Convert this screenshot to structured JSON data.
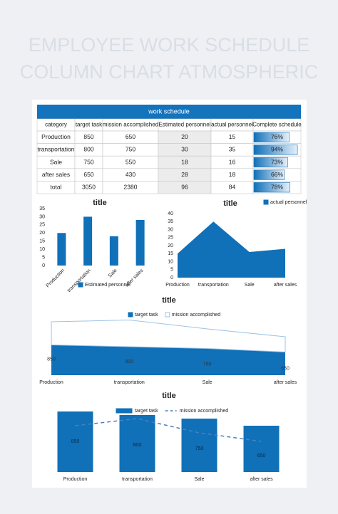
{
  "header": {
    "title_lines": [
      "EMPLOYEE WORK SCHEDULE",
      "COLUMN CHART ATMOSPHERIC"
    ]
  },
  "table": {
    "title": "work schedule",
    "columns": [
      "category",
      "target task",
      "mission accomplished",
      "Estimated personnel",
      "actual personnel",
      "Complete schedule"
    ],
    "rows": [
      [
        "Production",
        850,
        650,
        20,
        15
      ],
      [
        "transportation",
        800,
        750,
        30,
        35
      ],
      [
        "Sale",
        750,
        550,
        18,
        16
      ],
      [
        "after sales",
        650,
        430,
        28,
        18
      ],
      [
        "total",
        3050,
        2380,
        96,
        84
      ]
    ],
    "schedule": {
      "values": [
        76,
        94,
        73,
        66,
        78
      ],
      "value_labels": [
        "76%",
        "94%",
        "73%",
        "66%",
        "78%"
      ],
      "xlim": [
        0,
        100
      ],
      "color": "#1070b8"
    }
  },
  "chart_data": [
    {
      "type": "bar",
      "title": "title",
      "categories": [
        "Production",
        "transportation",
        "Sale",
        "after sales"
      ],
      "series": [
        {
          "name": "Estimated personnel",
          "color": "#1070b8",
          "values": [
            20,
            30,
            18,
            28
          ]
        }
      ],
      "ylim": [
        0,
        35
      ],
      "yticks": [
        0,
        5,
        10,
        15,
        20,
        25,
        30,
        35
      ],
      "legend": "bottom"
    },
    {
      "type": "area",
      "title": "title",
      "categories": [
        "Production",
        "transportation",
        "Sale",
        "after sales"
      ],
      "series": [
        {
          "name": "actual personnel",
          "color": "#1070b8",
          "values": [
            15,
            35,
            16,
            18
          ]
        }
      ],
      "ylim": [
        0,
        40
      ],
      "yticks": [
        0,
        5,
        10,
        15,
        20,
        25,
        30,
        35,
        40
      ],
      "legend": "top-right"
    },
    {
      "type": "area",
      "stacked": true,
      "title": "title",
      "categories": [
        "Production",
        "transportation",
        "Sale",
        "after sales"
      ],
      "series": [
        {
          "name": "target task",
          "color": "#1070b8",
          "values": [
            850,
            800,
            750,
            650
          ],
          "value_labels": [
            "850",
            "800",
            "750",
            "650"
          ]
        },
        {
          "name": "mission accomplished",
          "color": "#ffffff",
          "edge_color": "#9dc3e6",
          "values": [
            650,
            750,
            550,
            430
          ]
        }
      ],
      "ylim": [
        0,
        1600
      ],
      "legend": "top"
    },
    {
      "type": "combo",
      "title": "title",
      "categories": [
        "Production",
        "transportation",
        "Sale",
        "after sales"
      ],
      "series": [
        {
          "name": "target task",
          "type": "bar",
          "color": "#1070b8",
          "values": [
            850,
            800,
            750,
            650
          ],
          "value_labels": [
            "850",
            "800",
            "750",
            "650"
          ]
        },
        {
          "name": "mission accomplished",
          "type": "line",
          "color": "#4f81bd",
          "values": [
            650,
            750,
            550,
            430
          ]
        }
      ],
      "ylim": [
        0,
        900
      ],
      "legend": "top"
    }
  ]
}
